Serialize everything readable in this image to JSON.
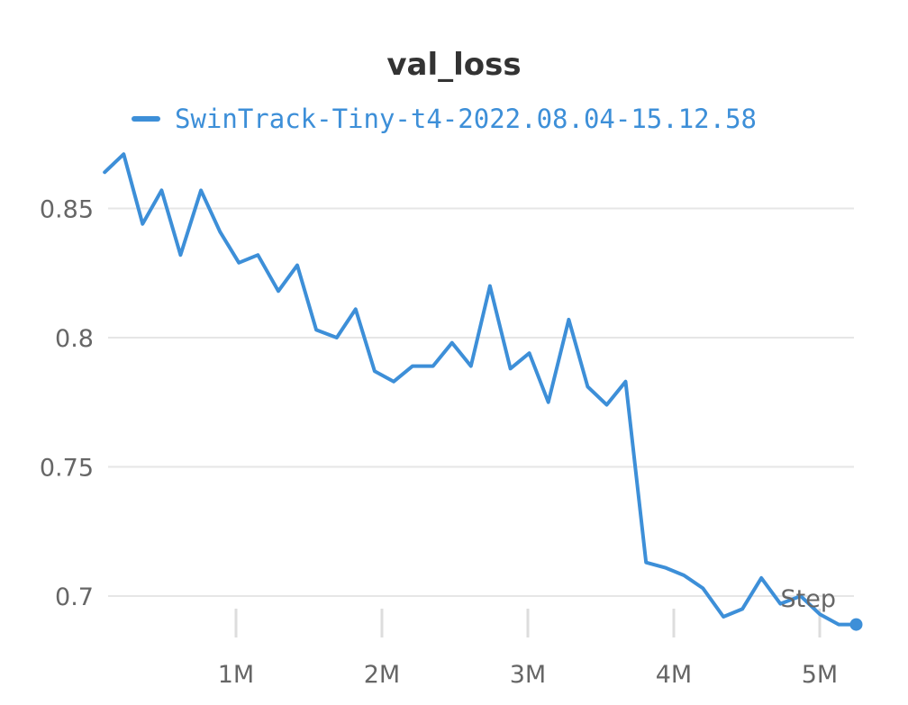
{
  "chart_data": {
    "type": "line",
    "title": "val_loss",
    "xlabel": "Step",
    "ylabel": "",
    "grid": true,
    "legend_placement": "top-left",
    "xlim": [
      100000,
      5250000
    ],
    "ylim": [
      0.686,
      0.878
    ],
    "x_ticks": [
      1000000,
      2000000,
      3000000,
      4000000,
      5000000
    ],
    "x_tick_labels": [
      "1M",
      "2M",
      "3M",
      "4M",
      "5M"
    ],
    "y_ticks": [
      0.7,
      0.75,
      0.8,
      0.85
    ],
    "y_tick_labels": [
      "0.7",
      "0.75",
      "0.8",
      "0.85"
    ],
    "series": [
      {
        "name": "SwinTrack-Tiny-t4-2022.08.04-15.12.58",
        "color": "#3d8fd8",
        "x": [
          100000,
          230000,
          360000,
          490000,
          620000,
          760000,
          890000,
          1020000,
          1150000,
          1290000,
          1420000,
          1550000,
          1690000,
          1820000,
          1950000,
          2080000,
          2210000,
          2350000,
          2480000,
          2610000,
          2740000,
          2880000,
          3010000,
          3140000,
          3280000,
          3410000,
          3540000,
          3670000,
          3810000,
          3940000,
          4070000,
          4200000,
          4340000,
          4470000,
          4600000,
          4730000,
          4870000,
          5000000,
          5130000,
          5250000
        ],
        "values": [
          0.864,
          0.871,
          0.844,
          0.857,
          0.832,
          0.857,
          0.841,
          0.829,
          0.832,
          0.818,
          0.828,
          0.803,
          0.8,
          0.811,
          0.787,
          0.783,
          0.789,
          0.789,
          0.798,
          0.789,
          0.82,
          0.788,
          0.794,
          0.775,
          0.807,
          0.781,
          0.774,
          0.783,
          0.713,
          0.711,
          0.708,
          0.703,
          0.692,
          0.695,
          0.707,
          0.697,
          0.7,
          0.693,
          0.689,
          0.689
        ]
      }
    ]
  }
}
